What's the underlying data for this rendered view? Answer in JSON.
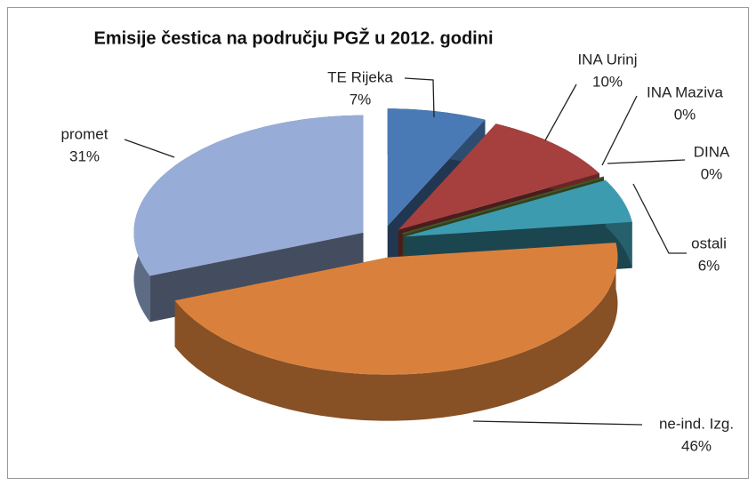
{
  "chart_data": {
    "type": "pie3d",
    "title": "Emisije  čestica na području  PGŽ u 2012. godini",
    "categories": [
      "TE Rijeka",
      "INA Urinj",
      "INA Maziva",
      "DINA",
      "ostali",
      "ne-ind. Izg.",
      "promet"
    ],
    "values": [
      7,
      10,
      0,
      0,
      6,
      46,
      31
    ],
    "value_labels": [
      "7%",
      "10%",
      "0%",
      "0%",
      "6%",
      "46%",
      "31%"
    ],
    "colors": [
      "#4a7ab5",
      "#a5403e",
      "#7b5aa0",
      "#6f8f3a",
      "#3d9bb0",
      "#d9813c",
      "#97acd6"
    ]
  }
}
